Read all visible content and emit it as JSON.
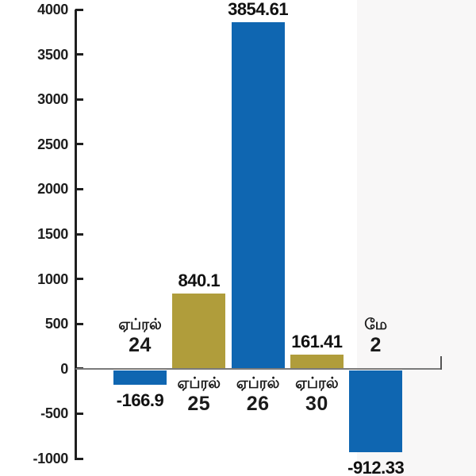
{
  "chart_data": {
    "type": "bar",
    "title": "",
    "xlabel": "",
    "ylabel": "",
    "categories": [
      "ஏப்ரல் 24",
      "ஏப்ரல் 25",
      "ஏப்ரல் 26",
      "ஏப்ரல் 30",
      "மே 2"
    ],
    "values": [
      -166.9,
      840.1,
      3854.61,
      161.41,
      -912.33
    ],
    "bars": [
      {
        "category_line1": "ஏப்ரல்",
        "category_line2": "24",
        "value": -166.9,
        "value_label": "-166.9",
        "color": "#0f66b1"
      },
      {
        "category_line1": "ஏப்ரல்",
        "category_line2": "25",
        "value": 840.1,
        "value_label": "840.1",
        "color": "#b09d3b"
      },
      {
        "category_line1": "ஏப்ரல்",
        "category_line2": "26",
        "value": 3854.61,
        "value_label": "3854.61",
        "color": "#0f66b1"
      },
      {
        "category_line1": "ஏப்ரல்",
        "category_line2": "30",
        "value": 161.41,
        "value_label": "161.41",
        "color": "#b09d3b"
      },
      {
        "category_line1": "மே",
        "category_line2": "2",
        "value": -912.33,
        "value_label": "-912.33",
        "color": "#0f66b1"
      }
    ],
    "ylim": [
      -1000,
      4000
    ],
    "y_ticks": [
      4000,
      3500,
      3000,
      2500,
      2000,
      1500,
      1000,
      500,
      0,
      -500,
      -1000
    ],
    "y_tick_labels": [
      "4000",
      "3500",
      "3000",
      "2500",
      "2000",
      "1500",
      "1000",
      "500",
      "0",
      "-500",
      "-1000"
    ],
    "grid": false,
    "legend": false,
    "colors": {
      "blue": "#0f66b1",
      "gold": "#b09d3b",
      "axis": "#1f1f1f",
      "baseline": "#7a7a7a",
      "highlight_band": "#f8f7f7",
      "text": "#111111"
    },
    "layout_hints": {
      "baseline_end_tick": true,
      "right_highlight_band": true,
      "category_labels_opposite_side_of_bar": true
    }
  }
}
